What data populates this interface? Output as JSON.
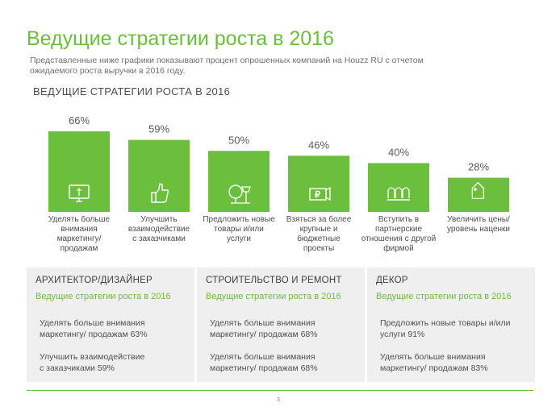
{
  "header": {
    "title": "Ведущие стратегии роста в 2016",
    "subtitle_line1": "Представленные ниже графики показывают процент опрошенных компаний на Houzz RU с отчетом",
    "subtitle_line2": "ожидаемого роста выручки в 2016 году."
  },
  "chart_data": {
    "type": "bar",
    "title": "ВЕДУЩИЕ СТРАТЕГИИ РОСТА В 2016",
    "categories": [
      [
        "Уделять больше",
        "внимания",
        "маркетингу/",
        "продажам"
      ],
      [
        "Улучшить",
        "взаимодействие",
        "с заказчиками"
      ],
      [
        "Предложить новые",
        "товары и/или",
        "услуги"
      ],
      [
        "Взяться за более",
        "крупные и",
        "бюджетные",
        "проекты"
      ],
      [
        "Вступить в",
        "партнерские",
        "отношения с другой",
        "фирмой"
      ],
      [
        "Увеличить цены/",
        "уровень наценки"
      ]
    ],
    "values": [
      66,
      59,
      50,
      46,
      40,
      28
    ],
    "value_suffix": "%",
    "icons": [
      "computer-icon",
      "thumbs-up-icon",
      "new-products-icon",
      "money-handshake-icon",
      "partners-group-icon",
      "price-tag-icon"
    ],
    "color": "#6bbf3c",
    "grid": false,
    "legend": "none"
  },
  "panels": [
    {
      "title": "АРХИТЕКТОР/ДИЗАЙНЕР",
      "subtitle": "Ведущие стратегии роста в 2016",
      "items": [
        [
          "Уделять больше внимания",
          "маркетингу/ продажам 63%"
        ],
        [
          "Улучшить взаимодействие",
          "с заказчиками 59%"
        ]
      ]
    },
    {
      "title": "СТРОИТЕЛЬСТВО И РЕМОНТ",
      "subtitle": "Ведущие стратегии роста в 2016",
      "items": [
        [
          "Уделять больше внимания",
          "маркетингу/ продажам 68%"
        ],
        [
          "Уделять больше внимания",
          "маркетингу/ продажам 68%"
        ]
      ]
    },
    {
      "title": "ДЕКОР",
      "subtitle": "Ведущие стратегии роста в 2016",
      "items": [
        [
          "Предложить новые товары и/или",
          "услуги 91%"
        ],
        [
          "Уделять больше внимания",
          "маркетингу/ продажам 83%"
        ]
      ]
    }
  ],
  "footer": {
    "page_number": "3"
  }
}
